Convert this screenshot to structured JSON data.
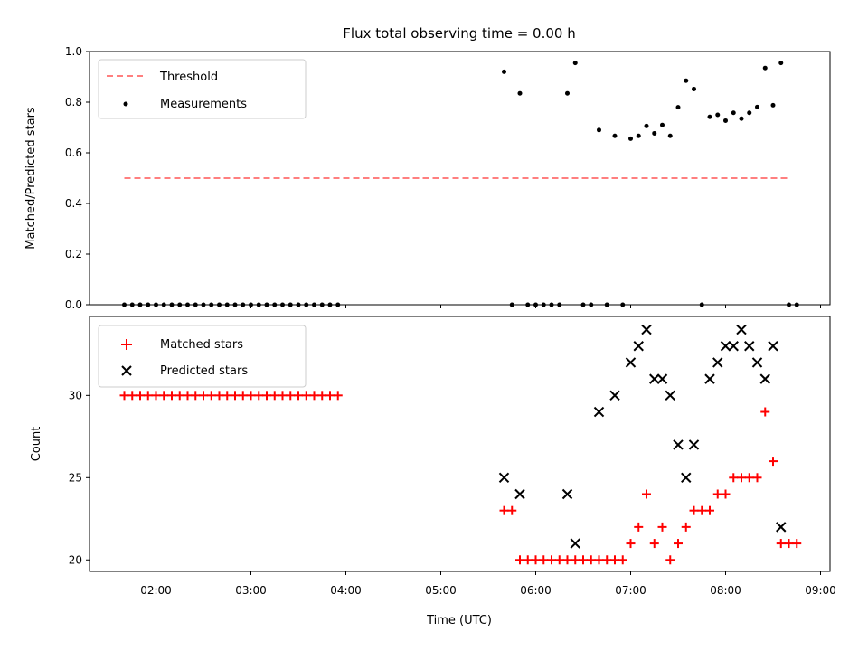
{
  "title": "Flux total observing time = 0.00 h",
  "xlabel": "Time (UTC)",
  "chart_data": [
    {
      "type": "scatter",
      "name": "ratio",
      "title": "Flux total observing time = 0.00 h",
      "ylabel": "Matched/Predicted stars",
      "xlim": [
        "01:18",
        "09:06"
      ],
      "ylim": [
        0,
        1.0
      ],
      "yticks": [
        0.0,
        0.2,
        0.4,
        0.6,
        0.8,
        1.0
      ],
      "grid": false,
      "legend": "upper-left",
      "threshold": {
        "label": "Threshold",
        "value": 0.5,
        "x_start": "01:40",
        "x_end": "08:40",
        "color": "#ff7f7f",
        "style": "dashed"
      },
      "series": [
        {
          "name": "Measurements",
          "color": "#000000",
          "marker": "dot",
          "points": [
            [
              "01:40",
              0
            ],
            [
              "01:45",
              0
            ],
            [
              "01:50",
              0
            ],
            [
              "01:55",
              0
            ],
            [
              "02:00",
              0
            ],
            [
              "02:05",
              0
            ],
            [
              "02:10",
              0
            ],
            [
              "02:15",
              0
            ],
            [
              "02:20",
              0
            ],
            [
              "02:25",
              0
            ],
            [
              "02:30",
              0
            ],
            [
              "02:35",
              0
            ],
            [
              "02:40",
              0
            ],
            [
              "02:45",
              0
            ],
            [
              "02:50",
              0
            ],
            [
              "02:55",
              0
            ],
            [
              "03:00",
              0
            ],
            [
              "03:05",
              0
            ],
            [
              "03:10",
              0
            ],
            [
              "03:15",
              0
            ],
            [
              "03:20",
              0
            ],
            [
              "03:25",
              0
            ],
            [
              "03:30",
              0
            ],
            [
              "03:35",
              0
            ],
            [
              "03:40",
              0
            ],
            [
              "03:45",
              0
            ],
            [
              "03:50",
              0
            ],
            [
              "03:55",
              0
            ],
            [
              "05:40",
              0.92
            ],
            [
              "05:45",
              0
            ],
            [
              "05:50",
              0.835
            ],
            [
              "05:55",
              0
            ],
            [
              "06:00",
              0
            ],
            [
              "06:05",
              0
            ],
            [
              "06:10",
              0
            ],
            [
              "06:15",
              0
            ],
            [
              "06:20",
              0.835
            ],
            [
              "06:25",
              0.955
            ],
            [
              "06:30",
              0
            ],
            [
              "06:35",
              0
            ],
            [
              "06:40",
              0.69
            ],
            [
              "06:45",
              0
            ],
            [
              "06:50",
              0.667
            ],
            [
              "06:55",
              0
            ],
            [
              "07:00",
              0.656
            ],
            [
              "07:05",
              0.667
            ],
            [
              "07:10",
              0.706
            ],
            [
              "07:15",
              0.677
            ],
            [
              "07:20",
              0.71
            ],
            [
              "07:25",
              0.667
            ],
            [
              "07:30",
              0.78
            ],
            [
              "07:35",
              0.885
            ],
            [
              "07:40",
              0.852
            ],
            [
              "07:45",
              0
            ],
            [
              "07:50",
              0.742
            ],
            [
              "07:55",
              0.75
            ],
            [
              "08:00",
              0.727
            ],
            [
              "08:05",
              0.758
            ],
            [
              "08:10",
              0.735
            ],
            [
              "08:15",
              0.758
            ],
            [
              "08:20",
              0.781
            ],
            [
              "08:25",
              0.935
            ],
            [
              "08:30",
              0.788
            ],
            [
              "08:35",
              0.955
            ],
            [
              "08:40",
              0
            ],
            [
              "08:45",
              0
            ]
          ]
        }
      ]
    },
    {
      "type": "scatter",
      "name": "counts",
      "xlabel": "Time (UTC)",
      "ylabel": "Count",
      "xlim": [
        "01:18",
        "09:06"
      ],
      "ylim": [
        19.3,
        34.8
      ],
      "yticks": [
        20,
        25,
        30
      ],
      "xticks": [
        "02:00",
        "03:00",
        "04:00",
        "05:00",
        "06:00",
        "07:00",
        "08:00",
        "09:00"
      ],
      "grid": false,
      "legend": "upper-left",
      "series": [
        {
          "name": "Matched stars",
          "color": "#ff0000",
          "marker": "plus",
          "points": [
            [
              "01:40",
              30
            ],
            [
              "01:45",
              30
            ],
            [
              "01:50",
              30
            ],
            [
              "01:55",
              30
            ],
            [
              "02:00",
              30
            ],
            [
              "02:05",
              30
            ],
            [
              "02:10",
              30
            ],
            [
              "02:15",
              30
            ],
            [
              "02:20",
              30
            ],
            [
              "02:25",
              30
            ],
            [
              "02:30",
              30
            ],
            [
              "02:35",
              30
            ],
            [
              "02:40",
              30
            ],
            [
              "02:45",
              30
            ],
            [
              "02:50",
              30
            ],
            [
              "02:55",
              30
            ],
            [
              "03:00",
              30
            ],
            [
              "03:05",
              30
            ],
            [
              "03:10",
              30
            ],
            [
              "03:15",
              30
            ],
            [
              "03:20",
              30
            ],
            [
              "03:25",
              30
            ],
            [
              "03:30",
              30
            ],
            [
              "03:35",
              30
            ],
            [
              "03:40",
              30
            ],
            [
              "03:45",
              30
            ],
            [
              "03:50",
              30
            ],
            [
              "03:55",
              30
            ],
            [
              "05:40",
              23
            ],
            [
              "05:45",
              23
            ],
            [
              "05:50",
              20
            ],
            [
              "05:55",
              20
            ],
            [
              "06:00",
              20
            ],
            [
              "06:05",
              20
            ],
            [
              "06:10",
              20
            ],
            [
              "06:15",
              20
            ],
            [
              "06:20",
              20
            ],
            [
              "06:25",
              20
            ],
            [
              "06:30",
              20
            ],
            [
              "06:35",
              20
            ],
            [
              "06:40",
              20
            ],
            [
              "06:45",
              20
            ],
            [
              "06:50",
              20
            ],
            [
              "06:55",
              20
            ],
            [
              "07:00",
              21
            ],
            [
              "07:05",
              22
            ],
            [
              "07:10",
              24
            ],
            [
              "07:15",
              21
            ],
            [
              "07:20",
              22
            ],
            [
              "07:25",
              20
            ],
            [
              "07:30",
              21
            ],
            [
              "07:35",
              22
            ],
            [
              "07:40",
              23
            ],
            [
              "07:45",
              23
            ],
            [
              "07:50",
              23
            ],
            [
              "07:55",
              24
            ],
            [
              "08:00",
              24
            ],
            [
              "08:05",
              25
            ],
            [
              "08:10",
              25
            ],
            [
              "08:15",
              25
            ],
            [
              "08:20",
              25
            ],
            [
              "08:25",
              29
            ],
            [
              "08:30",
              26
            ],
            [
              "08:35",
              21
            ],
            [
              "08:40",
              21
            ],
            [
              "08:45",
              21
            ]
          ]
        },
        {
          "name": "Predicted stars",
          "color": "#000000",
          "marker": "x",
          "points": [
            [
              "05:40",
              25
            ],
            [
              "05:50",
              24
            ],
            [
              "06:20",
              24
            ],
            [
              "06:25",
              21
            ],
            [
              "06:40",
              29
            ],
            [
              "06:50",
              30
            ],
            [
              "07:00",
              32
            ],
            [
              "07:05",
              33
            ],
            [
              "07:10",
              34
            ],
            [
              "07:15",
              31
            ],
            [
              "07:20",
              31
            ],
            [
              "07:25",
              30
            ],
            [
              "07:30",
              27
            ],
            [
              "07:35",
              25
            ],
            [
              "07:40",
              27
            ],
            [
              "07:50",
              31
            ],
            [
              "07:55",
              32
            ],
            [
              "08:00",
              33
            ],
            [
              "08:05",
              33
            ],
            [
              "08:10",
              34
            ],
            [
              "08:15",
              33
            ],
            [
              "08:20",
              32
            ],
            [
              "08:25",
              31
            ],
            [
              "08:30",
              33
            ],
            [
              "08:35",
              22
            ]
          ]
        }
      ]
    }
  ]
}
